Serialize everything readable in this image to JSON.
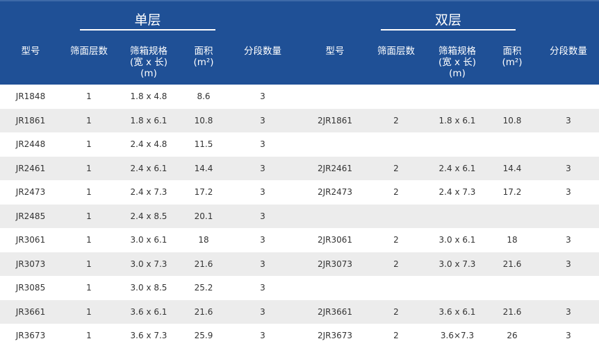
{
  "groups": {
    "single": "单层",
    "double": "双层"
  },
  "headers": {
    "model": "型号",
    "layers": "筛面层数",
    "spec1": "筛箱规格",
    "spec2": "(宽 x 长)",
    "spec3": "(m)",
    "area1": "面积",
    "area2": "(m²)",
    "sections": "分段数量"
  },
  "colors": {
    "header_bg": "#1f5096",
    "stripe": "#ececec"
  },
  "rows": [
    {
      "s": [
        "JR1848",
        "1",
        "1.8 x 4.8",
        "8.6",
        "3"
      ],
      "d": [
        "",
        "",
        "",
        "",
        ""
      ]
    },
    {
      "s": [
        "JR1861",
        "1",
        "1.8 x 6.1",
        "10.8",
        "3"
      ],
      "d": [
        "2JR1861",
        "2",
        "1.8 x 6.1",
        "10.8",
        "3"
      ]
    },
    {
      "s": [
        "JR2448",
        "1",
        "2.4 x 4.8",
        "11.5",
        "3"
      ],
      "d": [
        "",
        "",
        "",
        "",
        ""
      ]
    },
    {
      "s": [
        "JR2461",
        "1",
        "2.4 x 6.1",
        "14.4",
        "3"
      ],
      "d": [
        "2JR2461",
        "2",
        "2.4 x 6.1",
        "14.4",
        "3"
      ]
    },
    {
      "s": [
        "JR2473",
        "1",
        "2.4 x 7.3",
        "17.2",
        "3"
      ],
      "d": [
        "2JR2473",
        "2",
        "2.4 x 7.3",
        "17.2",
        "3"
      ]
    },
    {
      "s": [
        "JR2485",
        "1",
        "2.4 x 8.5",
        "20.1",
        "3"
      ],
      "d": [
        "",
        "",
        "",
        "",
        ""
      ]
    },
    {
      "s": [
        "JR3061",
        "1",
        "3.0 x 6.1",
        "18",
        "3"
      ],
      "d": [
        "2JR3061",
        "2",
        "3.0 x 6.1",
        "18",
        "3"
      ]
    },
    {
      "s": [
        "JR3073",
        "1",
        "3.0 x 7.3",
        "21.6",
        "3"
      ],
      "d": [
        "2JR3073",
        "2",
        "3.0 x 7.3",
        "21.6",
        "3"
      ]
    },
    {
      "s": [
        "JR3085",
        "1",
        "3.0 x 8.5",
        "25.2",
        "3"
      ],
      "d": [
        "",
        "",
        "",
        "",
        ""
      ]
    },
    {
      "s": [
        "JR3661",
        "1",
        "3.6 x 6.1",
        "21.6",
        "3"
      ],
      "d": [
        "2JR3661",
        "2",
        "3.6 x 6.1",
        "21.6",
        "3"
      ]
    },
    {
      "s": [
        "JR3673",
        "1",
        "3.6 x 7.3",
        "25.9",
        "3"
      ],
      "d": [
        "2JR3673",
        "2",
        "3.6×7.3",
        "26",
        "3"
      ]
    }
  ]
}
